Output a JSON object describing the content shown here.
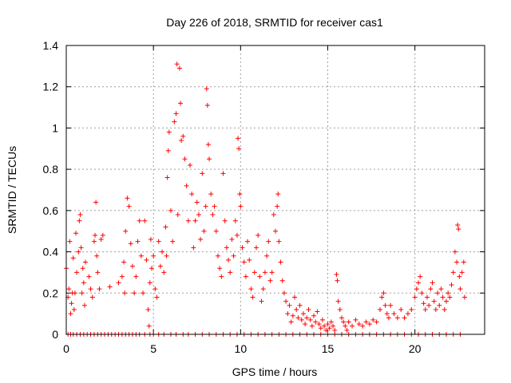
{
  "chart_data": {
    "type": "scatter",
    "title": "Day 226 of 2018, SRMTID for receiver cas1",
    "xlabel": "GPS time / hours",
    "ylabel": "SRMTID / TECUs",
    "xlim": [
      0,
      24
    ],
    "ylim": [
      0,
      1.4
    ],
    "xticks": [
      "0",
      "5",
      "10",
      "15",
      "20"
    ],
    "yticks": [
      "0",
      "0.2",
      "0.4",
      "0.6",
      "0.8",
      "1",
      "1.2",
      "1.4"
    ],
    "xtick_values": [
      0,
      5,
      10,
      15,
      20
    ],
    "ytick_values": [
      0,
      0.2,
      0.4,
      0.6,
      0.8,
      1.0,
      1.2,
      1.4
    ],
    "grid": true,
    "marker": "plus",
    "series": [
      {
        "name": "SRMTID",
        "color": "#ff0000",
        "points": [
          [
            0.0,
            0.32
          ],
          [
            0.1,
            0.18
          ],
          [
            0.15,
            0.22
          ],
          [
            0.2,
            0.45
          ],
          [
            0.25,
            0.1
          ],
          [
            0.3,
            0.15
          ],
          [
            0.35,
            0.2
          ],
          [
            0.4,
            0.37
          ],
          [
            0.45,
            0.12
          ],
          [
            0.5,
            0.2
          ],
          [
            0.55,
            0.49
          ],
          [
            0.6,
            0.3
          ],
          [
            0.7,
            0.4
          ],
          [
            0.75,
            0.55
          ],
          [
            0.8,
            0.58
          ],
          [
            0.85,
            0.42
          ],
          [
            0.9,
            0.2
          ],
          [
            0.95,
            0.32
          ],
          [
            1.0,
            0.25
          ],
          [
            1.05,
            0.14
          ],
          [
            1.1,
            0.35
          ],
          [
            1.3,
            0.28
          ],
          [
            1.4,
            0.22
          ],
          [
            1.5,
            0.18
          ],
          [
            1.6,
            0.45
          ],
          [
            1.65,
            0.48
          ],
          [
            1.7,
            0.64
          ],
          [
            1.75,
            0.38
          ],
          [
            1.8,
            0.3
          ],
          [
            1.9,
            0.22
          ],
          [
            2.0,
            0.46
          ],
          [
            2.1,
            0.48
          ],
          [
            0.1,
            0.0
          ],
          [
            0.25,
            0.0
          ],
          [
            0.4,
            0.0
          ],
          [
            0.6,
            0.0
          ],
          [
            0.8,
            0.0
          ],
          [
            1.0,
            0.0
          ],
          [
            1.2,
            0.0
          ],
          [
            1.4,
            0.0
          ],
          [
            1.6,
            0.0
          ],
          [
            1.8,
            0.0
          ],
          [
            2.0,
            0.0
          ],
          [
            2.2,
            0.0
          ],
          [
            2.4,
            0.0
          ],
          [
            2.6,
            0.0
          ],
          [
            2.8,
            0.0
          ],
          [
            3.0,
            0.0
          ],
          [
            3.2,
            0.0
          ],
          [
            3.4,
            0.0
          ],
          [
            3.6,
            0.0
          ],
          [
            3.8,
            0.0
          ],
          [
            4.0,
            0.0
          ],
          [
            4.2,
            0.0
          ],
          [
            4.5,
            0.0
          ],
          [
            4.8,
            0.0
          ],
          [
            2.5,
            0.23
          ],
          [
            3.0,
            0.25
          ],
          [
            3.2,
            0.28
          ],
          [
            3.3,
            0.35
          ],
          [
            3.35,
            0.2
          ],
          [
            3.4,
            0.5
          ],
          [
            3.5,
            0.66
          ],
          [
            3.6,
            0.62
          ],
          [
            3.7,
            0.44
          ],
          [
            3.8,
            0.33
          ],
          [
            3.9,
            0.2
          ],
          [
            4.0,
            0.28
          ],
          [
            4.1,
            0.45
          ],
          [
            4.2,
            0.55
          ],
          [
            4.3,
            0.38
          ],
          [
            4.4,
            0.2
          ],
          [
            4.5,
            0.55
          ],
          [
            4.6,
            0.36
          ],
          [
            4.7,
            0.12
          ],
          [
            4.75,
            0.04
          ],
          [
            4.8,
            0.25
          ],
          [
            4.85,
            0.46
          ],
          [
            4.9,
            0.32
          ],
          [
            5.0,
            0.38
          ],
          [
            5.1,
            0.22
          ],
          [
            5.2,
            0.18
          ],
          [
            5.3,
            0.45
          ],
          [
            5.4,
            0.33
          ],
          [
            5.5,
            0.4
          ],
          [
            5.6,
            0.3
          ],
          [
            5.7,
            0.52
          ],
          [
            5.75,
            0.38
          ],
          [
            5.8,
            0.76
          ],
          [
            5.85,
            0.89
          ],
          [
            5.9,
            0.98
          ],
          [
            6.0,
            0.6
          ],
          [
            6.1,
            0.45
          ],
          [
            6.2,
            1.03
          ],
          [
            6.3,
            1.07
          ],
          [
            6.35,
            1.31
          ],
          [
            6.4,
            0.58
          ],
          [
            6.5,
            1.29
          ],
          [
            6.55,
            1.12
          ],
          [
            6.6,
            0.94
          ],
          [
            6.7,
            0.96
          ],
          [
            6.8,
            0.85
          ],
          [
            6.9,
            0.72
          ],
          [
            7.0,
            0.55
          ],
          [
            7.1,
            0.82
          ],
          [
            7.2,
            0.68
          ],
          [
            7.3,
            0.42
          ],
          [
            7.4,
            0.55
          ],
          [
            7.5,
            0.64
          ],
          [
            7.6,
            0.58
          ],
          [
            7.7,
            0.46
          ],
          [
            7.8,
            0.78
          ],
          [
            7.9,
            0.5
          ],
          [
            8.0,
            0.62
          ],
          [
            8.05,
            1.19
          ],
          [
            8.1,
            1.11
          ],
          [
            8.15,
            0.92
          ],
          [
            8.2,
            0.85
          ],
          [
            8.3,
            0.68
          ],
          [
            8.4,
            0.58
          ],
          [
            8.5,
            0.62
          ],
          [
            8.6,
            0.5
          ],
          [
            8.7,
            0.38
          ],
          [
            8.8,
            0.32
          ],
          [
            8.9,
            0.28
          ],
          [
            9.0,
            0.78
          ],
          [
            9.1,
            0.55
          ],
          [
            9.2,
            0.42
          ],
          [
            9.3,
            0.36
          ],
          [
            9.4,
            0.3
          ],
          [
            9.5,
            0.46
          ],
          [
            9.6,
            0.38
          ],
          [
            5.0,
            0.0
          ],
          [
            5.3,
            0.0
          ],
          [
            5.6,
            0.0
          ],
          [
            6.0,
            0.0
          ],
          [
            6.3,
            0.0
          ],
          [
            6.7,
            0.0
          ],
          [
            7.0,
            0.0
          ],
          [
            7.4,
            0.0
          ],
          [
            7.8,
            0.0
          ],
          [
            8.2,
            0.0
          ],
          [
            8.6,
            0.0
          ],
          [
            9.0,
            0.0
          ],
          [
            9.4,
            0.0
          ],
          [
            9.8,
            0.0
          ],
          [
            10.2,
            0.0
          ],
          [
            10.6,
            0.0
          ],
          [
            11.0,
            0.0
          ],
          [
            11.4,
            0.0
          ],
          [
            11.8,
            0.0
          ],
          [
            12.2,
            0.0
          ],
          [
            12.6,
            0.0
          ],
          [
            13.0,
            0.0
          ],
          [
            13.4,
            0.0
          ],
          [
            13.8,
            0.0
          ],
          [
            14.2,
            0.0
          ],
          [
            14.6,
            0.0
          ],
          [
            15.0,
            0.0
          ],
          [
            15.4,
            0.0
          ],
          [
            15.8,
            0.0
          ],
          [
            16.2,
            0.0
          ],
          [
            16.6,
            0.0
          ],
          [
            17.0,
            0.0
          ],
          [
            17.4,
            0.0
          ],
          [
            17.8,
            0.0
          ],
          [
            18.2,
            0.0
          ],
          [
            18.6,
            0.0
          ],
          [
            19.0,
            0.0
          ],
          [
            19.4,
            0.0
          ],
          [
            19.8,
            0.0
          ],
          [
            20.2,
            0.0
          ],
          [
            20.6,
            0.0
          ],
          [
            21.0,
            0.0
          ],
          [
            21.4,
            0.0
          ],
          [
            21.8,
            0.0
          ],
          [
            22.2,
            0.0
          ],
          [
            22.6,
            0.0
          ],
          [
            9.7,
            0.55
          ],
          [
            9.8,
            0.48
          ],
          [
            9.85,
            0.95
          ],
          [
            9.9,
            0.9
          ],
          [
            9.95,
            0.68
          ],
          [
            10.0,
            0.62
          ],
          [
            10.1,
            0.42
          ],
          [
            10.2,
            0.35
          ],
          [
            10.3,
            0.28
          ],
          [
            10.4,
            0.45
          ],
          [
            10.5,
            0.36
          ],
          [
            10.6,
            0.22
          ],
          [
            10.7,
            0.18
          ],
          [
            10.8,
            0.3
          ],
          [
            10.9,
            0.42
          ],
          [
            11.0,
            0.48
          ],
          [
            11.1,
            0.28
          ],
          [
            11.2,
            0.16
          ],
          [
            11.3,
            0.22
          ],
          [
            11.4,
            0.3
          ],
          [
            11.5,
            0.38
          ],
          [
            11.6,
            0.45
          ],
          [
            11.7,
            0.26
          ],
          [
            11.8,
            0.3
          ],
          [
            11.9,
            0.58
          ],
          [
            12.0,
            0.5
          ],
          [
            12.1,
            0.62
          ],
          [
            12.15,
            0.68
          ],
          [
            12.2,
            0.45
          ],
          [
            12.3,
            0.35
          ],
          [
            12.4,
            0.26
          ],
          [
            12.5,
            0.2
          ],
          [
            12.6,
            0.16
          ],
          [
            12.7,
            0.1
          ],
          [
            12.8,
            0.14
          ],
          [
            12.9,
            0.06
          ],
          [
            13.0,
            0.09
          ],
          [
            13.1,
            0.18
          ],
          [
            13.2,
            0.12
          ],
          [
            13.3,
            0.08
          ],
          [
            13.4,
            0.14
          ],
          [
            13.5,
            0.07
          ],
          [
            13.6,
            0.1
          ],
          [
            13.7,
            0.05
          ],
          [
            13.8,
            0.08
          ],
          [
            13.9,
            0.12
          ],
          [
            14.0,
            0.07
          ],
          [
            14.1,
            0.04
          ],
          [
            14.2,
            0.09
          ],
          [
            14.3,
            0.06
          ],
          [
            14.4,
            0.11
          ],
          [
            14.5,
            0.05
          ],
          [
            14.6,
            0.03
          ],
          [
            14.7,
            0.07
          ],
          [
            14.8,
            0.04
          ],
          [
            14.9,
            0.02
          ],
          [
            15.0,
            0.05
          ],
          [
            15.1,
            0.03
          ],
          [
            15.2,
            0.06
          ],
          [
            15.3,
            0.04
          ],
          [
            15.4,
            0.02
          ],
          [
            15.5,
            0.29
          ],
          [
            15.55,
            0.26
          ],
          [
            15.6,
            0.16
          ],
          [
            15.7,
            0.12
          ],
          [
            15.8,
            0.08
          ],
          [
            15.9,
            0.06
          ],
          [
            16.0,
            0.04
          ],
          [
            16.1,
            0.02
          ],
          [
            16.2,
            0.06
          ],
          [
            16.4,
            0.04
          ],
          [
            16.6,
            0.07
          ],
          [
            16.8,
            0.05
          ],
          [
            17.0,
            0.04
          ],
          [
            17.2,
            0.06
          ],
          [
            17.4,
            0.05
          ],
          [
            17.6,
            0.07
          ],
          [
            17.8,
            0.06
          ],
          [
            18.0,
            0.12
          ],
          [
            18.1,
            0.18
          ],
          [
            18.2,
            0.2
          ],
          [
            18.3,
            0.14
          ],
          [
            18.4,
            0.1
          ],
          [
            18.5,
            0.08
          ],
          [
            18.6,
            0.14
          ],
          [
            18.8,
            0.1
          ],
          [
            19.0,
            0.08
          ],
          [
            19.2,
            0.12
          ],
          [
            19.4,
            0.08
          ],
          [
            19.6,
            0.1
          ],
          [
            19.8,
            0.12
          ],
          [
            20.0,
            0.18
          ],
          [
            20.1,
            0.22
          ],
          [
            20.2,
            0.25
          ],
          [
            20.3,
            0.28
          ],
          [
            20.4,
            0.2
          ],
          [
            20.5,
            0.15
          ],
          [
            20.6,
            0.12
          ],
          [
            20.7,
            0.18
          ],
          [
            20.8,
            0.14
          ],
          [
            20.9,
            0.22
          ],
          [
            21.0,
            0.25
          ],
          [
            21.1,
            0.16
          ],
          [
            21.2,
            0.12
          ],
          [
            21.3,
            0.2
          ],
          [
            21.4,
            0.14
          ],
          [
            21.5,
            0.22
          ],
          [
            21.6,
            0.18
          ],
          [
            21.7,
            0.12
          ],
          [
            21.8,
            0.16
          ],
          [
            21.9,
            0.2
          ],
          [
            22.0,
            0.18
          ],
          [
            22.1,
            0.24
          ],
          [
            22.2,
            0.3
          ],
          [
            22.3,
            0.4
          ],
          [
            22.4,
            0.35
          ],
          [
            22.45,
            0.53
          ],
          [
            22.5,
            0.51
          ],
          [
            22.55,
            0.28
          ],
          [
            22.6,
            0.22
          ],
          [
            22.7,
            0.3
          ],
          [
            22.8,
            0.35
          ],
          [
            22.85,
            0.18
          ]
        ]
      }
    ]
  }
}
